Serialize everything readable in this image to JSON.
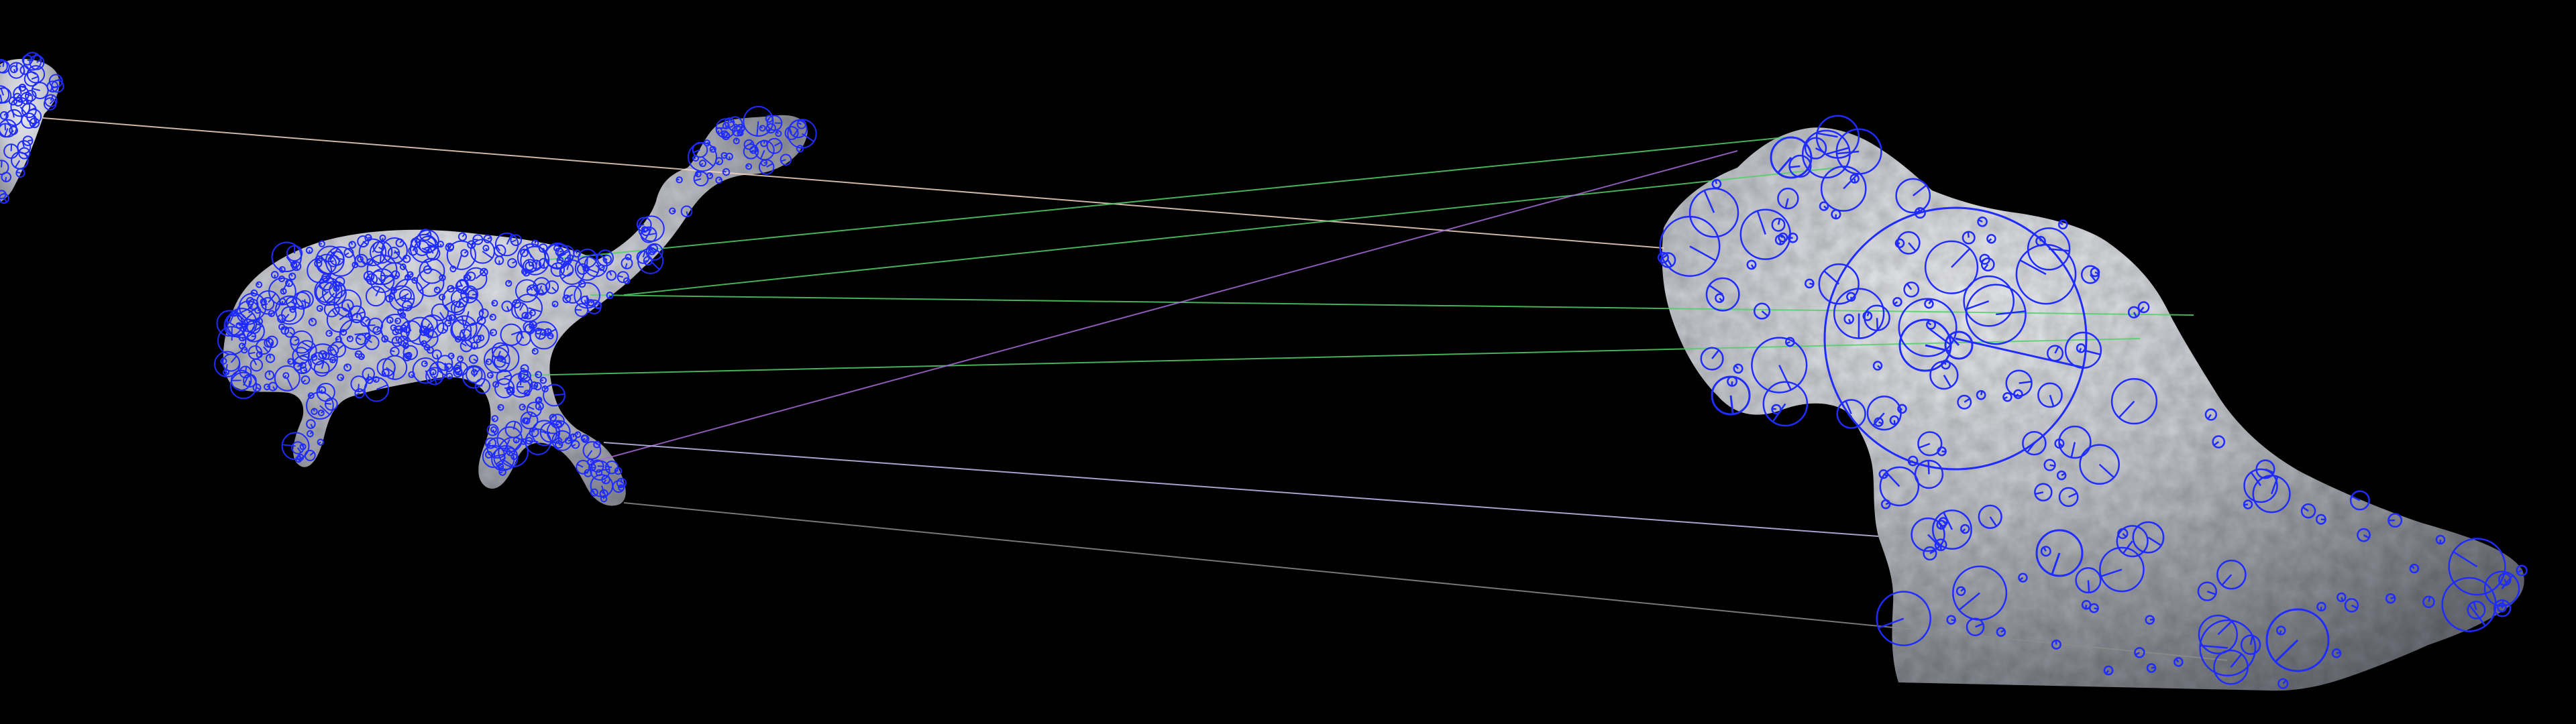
{
  "image": {
    "background_color": "#000000",
    "keypoint_color": "#1f2bff",
    "object_left": {
      "name": "small-animal-shaped-object",
      "surface_color": "#c9cad0"
    },
    "object_right": {
      "name": "large-rock-shaped-object",
      "surface_color": "#bfc2c7"
    },
    "match_lines": [
      {
        "color": "#f2d7c6"
      },
      {
        "color": "#53d06a"
      },
      {
        "color": "#53d06a"
      },
      {
        "color": "#53d06a"
      },
      {
        "color": "#53d06a"
      },
      {
        "color": "#a56bd8"
      },
      {
        "color": "#c7bdf2"
      },
      {
        "color": "#8c8c8c"
      }
    ]
  }
}
